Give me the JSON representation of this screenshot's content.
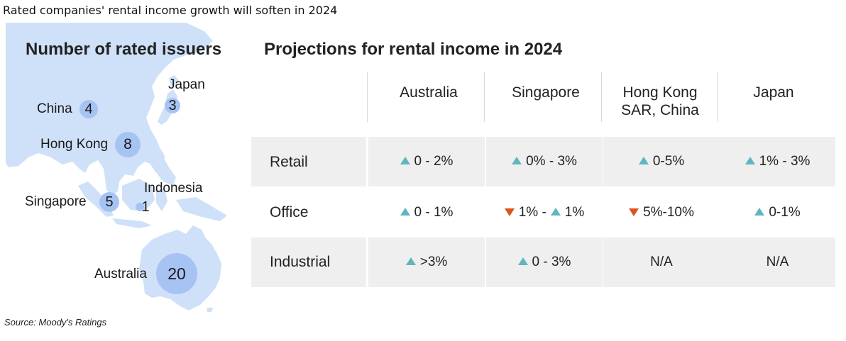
{
  "title": "Rated companies' rental income growth will soften in 2024",
  "source": "Source: Moody's Ratings",
  "colors": {
    "map_land": "#cfe1f8",
    "bubble": "#a6c3f3",
    "up_arrow": "#5fb6be",
    "down_arrow": "#d9551a",
    "cell_shade": "#efefef"
  },
  "map": {
    "heading": "Number of rated issuers",
    "issuers": [
      {
        "name": "China",
        "count": "4"
      },
      {
        "name": "Japan",
        "count": "3"
      },
      {
        "name": "Hong Kong",
        "count": "8"
      },
      {
        "name": "Indonesia",
        "count": "1"
      },
      {
        "name": "Singapore",
        "count": "5"
      },
      {
        "name": "Australia",
        "count": "20"
      }
    ]
  },
  "table": {
    "heading": "Projections for rental income in 2024",
    "columns": [
      "Australia",
      "Singapore",
      "Hong Kong SAR, China",
      "Japan"
    ],
    "column_lines": [
      [
        "Australia"
      ],
      [
        "Singapore"
      ],
      [
        "Hong Kong",
        "SAR, China"
      ],
      [
        "Japan"
      ]
    ],
    "rows": [
      {
        "label": "Retail",
        "cells": [
          {
            "parts": [
              {
                "dir": "up",
                "text": "0 - 2%"
              }
            ]
          },
          {
            "parts": [
              {
                "dir": "up",
                "text": "0% - 3%"
              }
            ]
          },
          {
            "parts": [
              {
                "dir": "up",
                "text": "0-5%"
              }
            ]
          },
          {
            "parts": [
              {
                "dir": "up",
                "text": "1% - 3%"
              }
            ]
          }
        ]
      },
      {
        "label": "Office",
        "cells": [
          {
            "parts": [
              {
                "dir": "up",
                "text": "0 - 1%"
              }
            ]
          },
          {
            "parts": [
              {
                "dir": "down",
                "text": "1% -"
              },
              {
                "dir": "up",
                "text": "1%"
              }
            ]
          },
          {
            "parts": [
              {
                "dir": "down",
                "text": "5%-10%"
              }
            ]
          },
          {
            "parts": [
              {
                "dir": "up",
                "text": "0-1%"
              }
            ]
          }
        ]
      },
      {
        "label": "Industrial",
        "cells": [
          {
            "parts": [
              {
                "dir": "up",
                "text": ">3%"
              }
            ]
          },
          {
            "parts": [
              {
                "dir": "up",
                "text": "0 - 3%"
              }
            ]
          },
          {
            "parts": [
              {
                "dir": "none",
                "text": "N/A"
              }
            ]
          },
          {
            "parts": [
              {
                "dir": "none",
                "text": "N/A"
              }
            ]
          }
        ]
      }
    ]
  },
  "chart_data": {
    "type": "table",
    "title": "Rated companies' rental income growth will soften in 2024",
    "issuers": {
      "China": 4,
      "Japan": 3,
      "Hong Kong": 8,
      "Indonesia": 1,
      "Singapore": 5,
      "Australia": 20
    },
    "columns": [
      "Australia",
      "Singapore",
      "Hong Kong SAR, China",
      "Japan"
    ],
    "rows": {
      "Retail": [
        "up 0 - 2%",
        "up 0% - 3%",
        "up 0-5%",
        "up 1% - 3%"
      ],
      "Office": [
        "up 0 - 1%",
        "down 1% - up 1%",
        "down 5%-10%",
        "up 0-1%"
      ],
      "Industrial": [
        "up >3%",
        "up 0 - 3%",
        "N/A",
        "N/A"
      ]
    }
  }
}
